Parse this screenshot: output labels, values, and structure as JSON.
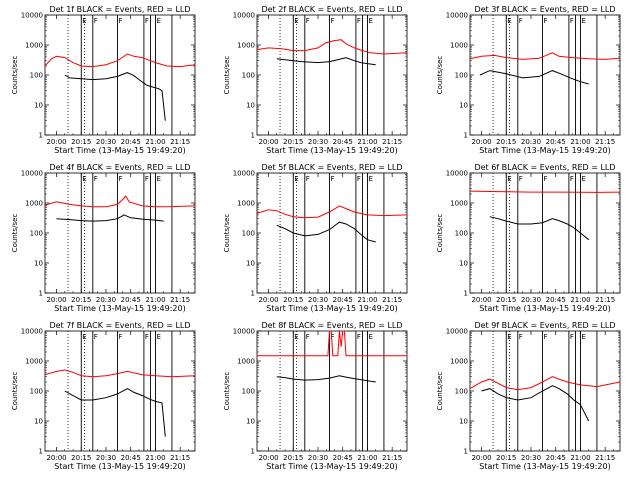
{
  "figure": {
    "x_tick_labels": [
      "20:00",
      "20:15",
      "20:30",
      "20:45",
      "21:00",
      "21:15"
    ],
    "y_tick_labels": [
      "1",
      "10",
      "100",
      "1000",
      "10000"
    ],
    "colors": {
      "events": "#000000",
      "lld": "#ff0000",
      "markers": "#000000"
    }
  },
  "chart_data": [
    {
      "type": "line",
      "title": "Det 1f BLACK = Events, RED = LLD",
      "xlabel": "Start Time (13-May-15 19:49:20)",
      "ylabel": "Counts/sec",
      "ylog": true,
      "ylim": [
        1,
        10000
      ],
      "x_range": [
        "19:53",
        "21:24"
      ],
      "series": [
        {
          "role": "Events",
          "color": "#000000",
          "x": [
            "20:05",
            "20:08",
            "20:15",
            "20:22",
            "20:30",
            "20:37",
            "20:43",
            "20:47",
            "20:50",
            "20:55",
            "20:58",
            "21:02",
            "21:04",
            "21:06"
          ],
          "y": [
            100,
            80,
            75,
            70,
            75,
            90,
            120,
            95,
            70,
            45,
            40,
            35,
            30,
            3
          ]
        },
        {
          "role": "LLD",
          "color": "#ff0000",
          "x": [
            "19:53",
            "19:57",
            "20:00",
            "20:05",
            "20:10",
            "20:15",
            "20:22",
            "20:30",
            "20:37",
            "20:43",
            "20:47",
            "20:52",
            "20:57",
            "21:00",
            "21:07",
            "21:15",
            "21:24"
          ],
          "y": [
            200,
            350,
            420,
            380,
            260,
            200,
            190,
            220,
            300,
            500,
            420,
            380,
            300,
            260,
            200,
            190,
            220
          ]
        }
      ]
    },
    {
      "type": "line",
      "title": "Det 2f BLACK = Events, RED = LLD",
      "xlabel": "Start Time (13-May-15 19:49:20)",
      "ylabel": "Counts/sec",
      "ylog": true,
      "ylim": [
        1,
        10000
      ],
      "x_range": [
        "19:53",
        "21:24"
      ],
      "series": [
        {
          "role": "Events",
          "color": "#000000",
          "x": [
            "20:05",
            "20:10",
            "20:20",
            "20:30",
            "20:37",
            "20:43",
            "20:47",
            "20:52",
            "20:56",
            "21:00",
            "21:05"
          ],
          "y": [
            350,
            320,
            280,
            260,
            280,
            330,
            380,
            300,
            260,
            240,
            220
          ]
        },
        {
          "role": "LLD",
          "color": "#ff0000",
          "x": [
            "19:53",
            "20:00",
            "20:08",
            "20:15",
            "20:22",
            "20:30",
            "20:35",
            "20:40",
            "20:44",
            "20:47",
            "20:52",
            "20:57",
            "21:02",
            "21:10",
            "21:24"
          ],
          "y": [
            700,
            800,
            750,
            650,
            650,
            800,
            1200,
            1400,
            1500,
            1100,
            800,
            650,
            550,
            500,
            550
          ]
        }
      ]
    },
    {
      "type": "line",
      "title": "Det 3f BLACK = Events, RED = LLD",
      "xlabel": "Start Time (13-May-15 19:49:20)",
      "ylabel": "Counts/sec",
      "ylog": true,
      "ylim": [
        1,
        10000
      ],
      "x_range": [
        "19:53",
        "21:24"
      ],
      "series": [
        {
          "role": "Events",
          "color": "#000000",
          "x": [
            "19:59",
            "20:05",
            "20:15",
            "20:25",
            "20:35",
            "20:43",
            "20:48",
            "20:55",
            "21:00",
            "21:05"
          ],
          "y": [
            100,
            140,
            110,
            80,
            90,
            140,
            110,
            75,
            60,
            50
          ]
        },
        {
          "role": "LLD",
          "color": "#ff0000",
          "x": [
            "19:53",
            "20:00",
            "20:08",
            "20:15",
            "20:25",
            "20:35",
            "20:43",
            "20:47",
            "20:55",
            "21:05",
            "21:15",
            "21:24"
          ],
          "y": [
            350,
            420,
            450,
            380,
            330,
            360,
            550,
            420,
            380,
            350,
            330,
            360
          ]
        }
      ]
    },
    {
      "type": "line",
      "title": "Det 4f BLACK = Events, RED = LLD",
      "xlabel": "Start Time (13-May-15 19:49:20)",
      "ylabel": "Counts/sec",
      "ylog": true,
      "ylim": [
        1,
        10000
      ],
      "x_range": [
        "19:53",
        "21:24"
      ],
      "series": [
        {
          "role": "Events",
          "color": "#000000",
          "x": [
            "20:00",
            "20:08",
            "20:15",
            "20:22",
            "20:30",
            "20:37",
            "20:41",
            "20:45",
            "20:52",
            "21:00",
            "21:05"
          ],
          "y": [
            300,
            280,
            260,
            250,
            260,
            300,
            400,
            320,
            290,
            270,
            250
          ]
        },
        {
          "role": "LLD",
          "color": "#ff0000",
          "x": [
            "19:53",
            "20:00",
            "20:08",
            "20:15",
            "20:22",
            "20:30",
            "20:37",
            "20:40",
            "20:42",
            "20:44",
            "20:52",
            "21:00",
            "21:10",
            "21:24"
          ],
          "y": [
            850,
            1100,
            900,
            800,
            750,
            750,
            900,
            1300,
            1700,
            1100,
            800,
            750,
            760,
            800
          ]
        }
      ]
    },
    {
      "type": "line",
      "title": "Det 5f BLACK = Events, RED = LLD",
      "xlabel": "Start Time (13-May-15 19:49:20)",
      "ylabel": "Counts/sec",
      "ylog": true,
      "ylim": [
        1,
        10000
      ],
      "x_range": [
        "19:53",
        "21:24"
      ],
      "series": [
        {
          "role": "Events",
          "color": "#000000",
          "x": [
            "20:05",
            "20:10",
            "20:15",
            "20:22",
            "20:30",
            "20:37",
            "20:43",
            "20:47",
            "20:52",
            "20:56",
            "21:00",
            "21:05"
          ],
          "y": [
            180,
            140,
            100,
            80,
            90,
            130,
            230,
            200,
            140,
            90,
            60,
            50
          ]
        },
        {
          "role": "LLD",
          "color": "#ff0000",
          "x": [
            "19:53",
            "20:00",
            "20:05",
            "20:10",
            "20:15",
            "20:22",
            "20:30",
            "20:37",
            "20:43",
            "20:47",
            "20:52",
            "21:00",
            "21:10",
            "21:24"
          ],
          "y": [
            450,
            600,
            550,
            420,
            350,
            320,
            340,
            500,
            800,
            650,
            500,
            400,
            380,
            400
          ]
        }
      ]
    },
    {
      "type": "line",
      "title": "Det 6f BLACK = Events, RED = LLD",
      "xlabel": "Start Time (13-May-15 19:49:20)",
      "ylabel": "Counts/sec",
      "ylog": true,
      "ylim": [
        1,
        10000
      ],
      "x_range": [
        "19:53",
        "21:24"
      ],
      "series": [
        {
          "role": "Events",
          "color": "#000000",
          "x": [
            "20:05",
            "20:10",
            "20:15",
            "20:22",
            "20:30",
            "20:37",
            "20:43",
            "20:47",
            "20:52",
            "20:56",
            "21:00",
            "21:05"
          ],
          "y": [
            350,
            300,
            250,
            200,
            200,
            220,
            300,
            260,
            200,
            150,
            100,
            60
          ]
        },
        {
          "role": "LLD",
          "color": "#ff0000",
          "x": [
            "19:53",
            "20:10",
            "20:30",
            "20:50",
            "21:10",
            "21:24"
          ],
          "y": [
            2500,
            2400,
            2300,
            2300,
            2250,
            2300
          ]
        }
      ]
    },
    {
      "type": "line",
      "title": "Det 7f BLACK = Events, RED = LLD",
      "xlabel": "Start Time (13-May-15 19:49:20)",
      "ylabel": "Counts/sec",
      "ylog": true,
      "ylim": [
        1,
        10000
      ],
      "x_range": [
        "19:53",
        "21:24"
      ],
      "series": [
        {
          "role": "Events",
          "color": "#000000",
          "x": [
            "20:05",
            "20:10",
            "20:15",
            "20:22",
            "20:30",
            "20:37",
            "20:43",
            "20:47",
            "20:52",
            "20:56",
            "21:00",
            "21:04",
            "21:06"
          ],
          "y": [
            100,
            70,
            50,
            50,
            60,
            80,
            120,
            90,
            70,
            55,
            45,
            40,
            3
          ]
        },
        {
          "role": "LLD",
          "color": "#ff0000",
          "x": [
            "19:53",
            "20:00",
            "20:05",
            "20:10",
            "20:15",
            "20:22",
            "20:30",
            "20:37",
            "20:43",
            "20:47",
            "20:52",
            "21:00",
            "21:10",
            "21:24"
          ],
          "y": [
            350,
            450,
            500,
            420,
            320,
            300,
            320,
            380,
            450,
            400,
            350,
            320,
            300,
            320
          ]
        }
      ]
    },
    {
      "type": "line",
      "title": "Det 8f BLACK = Events, RED = LLD",
      "xlabel": "Start Time (13-May-15 19:49:20)",
      "ylabel": "Counts/sec",
      "ylog": true,
      "ylim": [
        1,
        10000
      ],
      "x_range": [
        "19:53",
        "21:24"
      ],
      "series": [
        {
          "role": "Events",
          "color": "#000000",
          "x": [
            "20:05",
            "20:10",
            "20:15",
            "20:22",
            "20:30",
            "20:37",
            "20:43",
            "20:47",
            "20:52",
            "20:56",
            "21:00",
            "21:05"
          ],
          "y": [
            300,
            280,
            250,
            230,
            240,
            270,
            320,
            290,
            260,
            240,
            220,
            200
          ]
        },
        {
          "role": "LLD",
          "color": "#ff0000",
          "x": [
            "19:53",
            "20:10",
            "20:30",
            "20:36",
            "20:37",
            "20:38",
            "20:39",
            "20:42",
            "20:43",
            "20:44",
            "20:45",
            "20:46",
            "20:47",
            "20:48",
            "21:00",
            "21:24"
          ],
          "y": [
            1500,
            1500,
            1500,
            1500,
            10000,
            10000,
            1500,
            1500,
            10000,
            3000,
            10000,
            10000,
            1500,
            1500,
            1500,
            1500
          ]
        }
      ]
    },
    {
      "type": "line",
      "title": "Det 9f BLACK = Events, RED = LLD",
      "xlabel": "Start Time (13-May-15 19:49:20)",
      "ylabel": "Counts/sec",
      "ylog": true,
      "ylim": [
        1,
        10000
      ],
      "x_range": [
        "19:53",
        "21:24"
      ],
      "series": [
        {
          "role": "Events",
          "color": "#000000",
          "x": [
            "20:00",
            "20:05",
            "20:10",
            "20:15",
            "20:22",
            "20:30",
            "20:37",
            "20:43",
            "20:47",
            "20:52",
            "20:56",
            "21:00",
            "21:05"
          ],
          "y": [
            100,
            120,
            80,
            60,
            50,
            60,
            100,
            150,
            120,
            80,
            50,
            35,
            10
          ]
        },
        {
          "role": "LLD",
          "color": "#ff0000",
          "x": [
            "19:53",
            "20:00",
            "20:05",
            "20:10",
            "20:15",
            "20:22",
            "20:30",
            "20:37",
            "20:43",
            "20:47",
            "20:52",
            "21:00",
            "21:10",
            "21:24"
          ],
          "y": [
            120,
            200,
            250,
            180,
            130,
            110,
            130,
            200,
            300,
            250,
            200,
            160,
            140,
            200
          ]
        }
      ]
    }
  ]
}
